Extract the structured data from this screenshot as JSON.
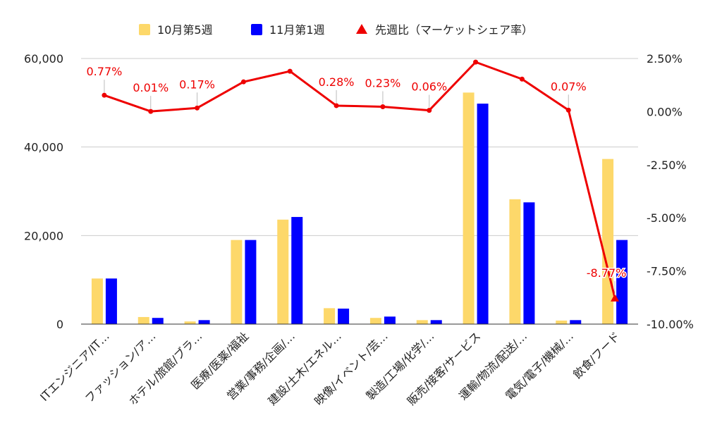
{
  "chart_data": {
    "type": "bar",
    "categories": [
      "ITエンジニア/IT…",
      "ファッション/ア…",
      "ホテル/旅館/ブラ…",
      "医療/医薬/福祉",
      "営業/事務/企画/…",
      "建設/土木/エネル…",
      "映像/イベント/芸…",
      "製造/工場/化学/…",
      "販売/接客/サービス",
      "運輸/物流/配送/…",
      "電気/電子/機械/…",
      "飲食/フード"
    ],
    "series": [
      {
        "name": "10月第5週",
        "kind": "bar",
        "color": "#fdd86a",
        "values": [
          10300,
          1600,
          600,
          19000,
          23600,
          3600,
          1400,
          900,
          52300,
          28200,
          800,
          37300
        ]
      },
      {
        "name": "11月第1週",
        "kind": "bar",
        "color": "#0000ff",
        "values": [
          10300,
          1400,
          900,
          19000,
          24200,
          3500,
          1700,
          900,
          49800,
          27500,
          900,
          19000
        ]
      },
      {
        "name": "先週比（マーケットシェア率）",
        "kind": "line",
        "axis": "right",
        "color": "#ee0000",
        "values": [
          0.77,
          0.01,
          0.17,
          1.4,
          1.9,
          0.28,
          0.23,
          0.06,
          2.33,
          1.53,
          0.07,
          -8.77
        ],
        "labels": [
          "0.77%",
          "0.01%",
          "0.17%",
          "",
          "",
          "0.28%",
          "0.23%",
          "0.06%",
          "",
          "",
          "0.07%",
          "-8.77%"
        ]
      }
    ],
    "y_left": {
      "min": 0,
      "max": 60000,
      "ticks": [
        0,
        20000,
        40000,
        60000
      ],
      "tick_labels": [
        "0",
        "20,000",
        "40,000",
        "60,000"
      ]
    },
    "y_right": {
      "min": -10,
      "max": 2.5,
      "ticks": [
        2.5,
        0,
        -2.5,
        -5,
        -7.5,
        -10
      ],
      "tick_labels": [
        "2.50%",
        "0.00%",
        "-2.50%",
        "-5.00%",
        "-7.50%",
        "-10.00%"
      ]
    },
    "legend_position": "top",
    "grid": true
  }
}
